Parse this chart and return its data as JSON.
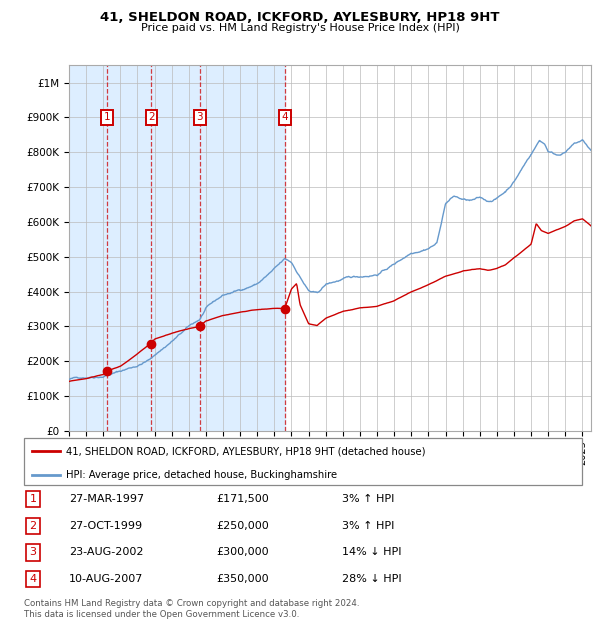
{
  "title1": "41, SHELDON ROAD, ICKFORD, AYLESBURY, HP18 9HT",
  "title2": "Price paid vs. HM Land Registry's House Price Index (HPI)",
  "legend_line1": "41, SHELDON ROAD, ICKFORD, AYLESBURY, HP18 9HT (detached house)",
  "legend_line2": "HPI: Average price, detached house, Buckinghamshire",
  "transactions": [
    {
      "num": 1,
      "date": "27-MAR-1997",
      "price": 171500,
      "pct": "3%",
      "dir": "↑"
    },
    {
      "num": 2,
      "date": "27-OCT-1999",
      "price": 250000,
      "pct": "3%",
      "dir": "↑"
    },
    {
      "num": 3,
      "date": "23-AUG-2002",
      "price": 300000,
      "pct": "14%",
      "dir": "↓"
    },
    {
      "num": 4,
      "date": "10-AUG-2007",
      "price": 350000,
      "pct": "28%",
      "dir": "↓"
    }
  ],
  "transaction_dates_decimal": [
    1997.23,
    1999.82,
    2002.64,
    2007.61
  ],
  "transaction_prices": [
    171500,
    250000,
    300000,
    350000
  ],
  "copyright": "Contains HM Land Registry data © Crown copyright and database right 2024.\nThis data is licensed under the Open Government Licence v3.0.",
  "color_red": "#cc0000",
  "color_blue": "#6699cc",
  "color_bg": "#ddeeff",
  "color_grid": "#bbbbbb",
  "ylim_max": 1050000,
  "xlim_start": 1995.0,
  "xlim_end": 2025.5,
  "hpi_waypoints": [
    [
      1995.0,
      148000
    ],
    [
      1996.0,
      155000
    ],
    [
      1997.0,
      163000
    ],
    [
      1997.23,
      168000
    ],
    [
      1998.0,
      178000
    ],
    [
      1999.0,
      195000
    ],
    [
      1999.82,
      215000
    ],
    [
      2000.0,
      225000
    ],
    [
      2001.0,
      265000
    ],
    [
      2002.0,
      305000
    ],
    [
      2002.64,
      325000
    ],
    [
      2003.0,
      355000
    ],
    [
      2004.0,
      390000
    ],
    [
      2005.0,
      405000
    ],
    [
      2006.0,
      425000
    ],
    [
      2007.0,
      465000
    ],
    [
      2007.61,
      490000
    ],
    [
      2008.0,
      480000
    ],
    [
      2008.5,
      440000
    ],
    [
      2009.0,
      400000
    ],
    [
      2009.5,
      390000
    ],
    [
      2010.0,
      415000
    ],
    [
      2011.0,
      430000
    ],
    [
      2012.0,
      435000
    ],
    [
      2013.0,
      445000
    ],
    [
      2014.0,
      475000
    ],
    [
      2015.0,
      510000
    ],
    [
      2016.0,
      530000
    ],
    [
      2016.5,
      545000
    ],
    [
      2017.0,
      660000
    ],
    [
      2017.5,
      680000
    ],
    [
      2018.0,
      670000
    ],
    [
      2018.5,
      665000
    ],
    [
      2019.0,
      670000
    ],
    [
      2019.5,
      660000
    ],
    [
      2020.0,
      670000
    ],
    [
      2020.5,
      690000
    ],
    [
      2021.0,
      720000
    ],
    [
      2021.5,
      760000
    ],
    [
      2022.0,
      800000
    ],
    [
      2022.5,
      840000
    ],
    [
      2022.8,
      830000
    ],
    [
      2023.0,
      810000
    ],
    [
      2023.5,
      800000
    ],
    [
      2024.0,
      810000
    ],
    [
      2024.5,
      830000
    ],
    [
      2025.0,
      840000
    ],
    [
      2025.5,
      810000
    ]
  ],
  "pp_waypoints": [
    [
      1995.0,
      142000
    ],
    [
      1996.0,
      150000
    ],
    [
      1997.0,
      162000
    ],
    [
      1997.23,
      171500
    ],
    [
      1998.0,
      185000
    ],
    [
      1999.0,
      220000
    ],
    [
      1999.82,
      250000
    ],
    [
      2000.0,
      260000
    ],
    [
      2001.0,
      278000
    ],
    [
      2002.0,
      292000
    ],
    [
      2002.64,
      300000
    ],
    [
      2003.0,
      315000
    ],
    [
      2004.0,
      330000
    ],
    [
      2005.0,
      340000
    ],
    [
      2006.0,
      345000
    ],
    [
      2007.0,
      350000
    ],
    [
      2007.61,
      350000
    ],
    [
      2008.0,
      405000
    ],
    [
      2008.3,
      420000
    ],
    [
      2008.5,
      360000
    ],
    [
      2009.0,
      305000
    ],
    [
      2009.5,
      300000
    ],
    [
      2010.0,
      320000
    ],
    [
      2011.0,
      340000
    ],
    [
      2012.0,
      350000
    ],
    [
      2013.0,
      355000
    ],
    [
      2014.0,
      370000
    ],
    [
      2015.0,
      395000
    ],
    [
      2016.0,
      415000
    ],
    [
      2017.0,
      440000
    ],
    [
      2018.0,
      455000
    ],
    [
      2019.0,
      460000
    ],
    [
      2019.5,
      455000
    ],
    [
      2020.0,
      460000
    ],
    [
      2020.5,
      470000
    ],
    [
      2021.0,
      490000
    ],
    [
      2021.5,
      510000
    ],
    [
      2022.0,
      530000
    ],
    [
      2022.3,
      590000
    ],
    [
      2022.6,
      570000
    ],
    [
      2023.0,
      560000
    ],
    [
      2023.5,
      570000
    ],
    [
      2024.0,
      580000
    ],
    [
      2024.5,
      595000
    ],
    [
      2025.0,
      600000
    ],
    [
      2025.5,
      580000
    ]
  ]
}
